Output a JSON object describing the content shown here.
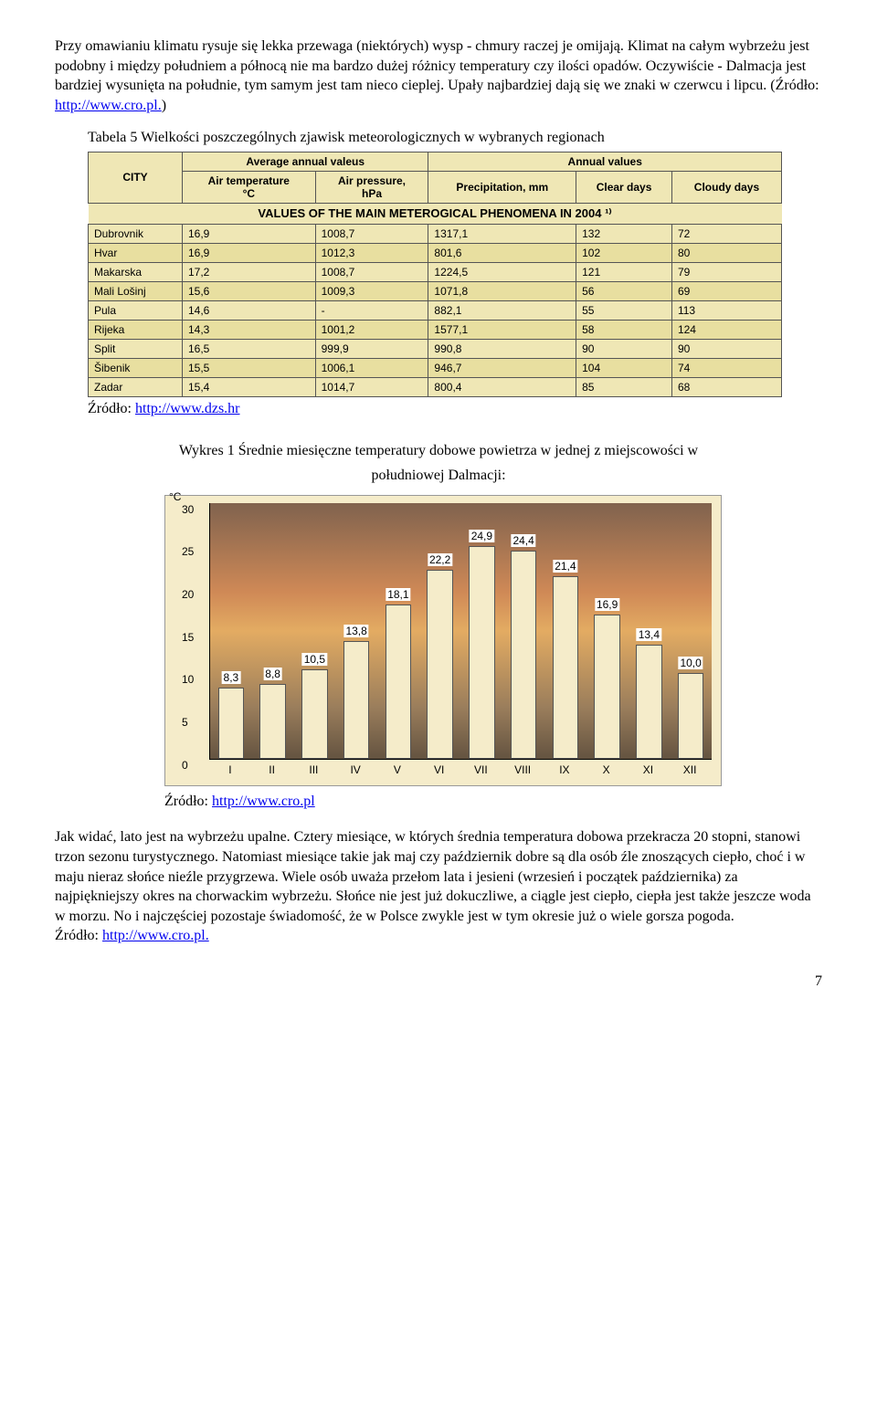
{
  "para1": "Przy omawianiu klimatu rysuje się lekka przewaga (niektórych) wysp - chmury raczej je omijają. Klimat na całym wybrzeżu jest podobny i między południem a północą nie ma bardzo dużej różnicy temperatury czy ilości opadów. Oczywiście - Dalmacja jest bardziej wysunięta na południe, tym samym jest tam nieco cieplej. Upały najbardziej dają się we znaki w czerwcu i lipcu. (Źródło: ",
  "para1_link_text": "http://www.cro.pl.",
  "para1_tail": ")",
  "table_caption": "Tabela 5 Wielkości poszczególnych zjawisk meteorologicznych w wybranych regionach",
  "table_title": "VALUES OF THE MAIN METEROGICAL PHENOMENA IN 2004 ¹⁾",
  "table": {
    "col_group1": "Average annual valeus",
    "col_group2": "Annual values",
    "col_city": "CITY",
    "col_temp": "Air temperature\n°C",
    "col_pressure": "Air pressure,\nhPa",
    "col_precip": "Precipitation, mm",
    "col_clear": "Clear days",
    "col_cloudy": "Cloudy days",
    "rows": [
      {
        "city": "Dubrovnik",
        "temp": "16,9",
        "pressure": "1008,7",
        "precip": "1317,1",
        "clear": "132",
        "cloudy": "72"
      },
      {
        "city": "Hvar",
        "temp": "16,9",
        "pressure": "1012,3",
        "precip": "801,6",
        "clear": "102",
        "cloudy": "80"
      },
      {
        "city": "Makarska",
        "temp": "17,2",
        "pressure": "1008,7",
        "precip": "1224,5",
        "clear": "121",
        "cloudy": "79"
      },
      {
        "city": "Mali Lošinj",
        "temp": "15,6",
        "pressure": "1009,3",
        "precip": "1071,8",
        "clear": "56",
        "cloudy": "69"
      },
      {
        "city": "Pula",
        "temp": "14,6",
        "pressure": "-",
        "precip": "882,1",
        "clear": "55",
        "cloudy": "113"
      },
      {
        "city": "Rijeka",
        "temp": "14,3",
        "pressure": "1001,2",
        "precip": "1577,1",
        "clear": "58",
        "cloudy": "124"
      },
      {
        "city": "Split",
        "temp": "16,5",
        "pressure": "999,9",
        "precip": "990,8",
        "clear": "90",
        "cloudy": "90"
      },
      {
        "city": "Šibenik",
        "temp": "15,5",
        "pressure": "1006,1",
        "precip": "946,7",
        "clear": "104",
        "cloudy": "74"
      },
      {
        "city": "Zadar",
        "temp": "15,4",
        "pressure": "1014,7",
        "precip": "800,4",
        "clear": "85",
        "cloudy": "68"
      }
    ]
  },
  "source1_label": "Źródło: ",
  "source1_link": "http://www.dzs.hr",
  "chart_caption_l1": "Wykres 1 Średnie miesięczne temperatury dobowe powietrza w jednej z miejscowości w",
  "chart_caption_l2": "południowej Dalmacji:",
  "chart": {
    "y_unit": "°C",
    "y_max": 30,
    "y_ticks": [
      0,
      5,
      10,
      15,
      20,
      25,
      30
    ],
    "bar_fill": "#f5ecca",
    "bar_border": "#555555",
    "plot_bg_gradient": [
      "#6b4a38",
      "#c97842",
      "#e0a050",
      "#8a6a48",
      "#4a3828"
    ],
    "x_labels": [
      "I",
      "II",
      "III",
      "IV",
      "V",
      "VI",
      "VII",
      "VIII",
      "IX",
      "X",
      "XI",
      "XII"
    ],
    "values": [
      8.3,
      8.8,
      10.5,
      13.8,
      18.1,
      22.2,
      24.9,
      24.4,
      21.4,
      16.9,
      13.4,
      10.0
    ],
    "value_labels": [
      "8,3",
      "8,8",
      "10,5",
      "13,8",
      "18,1",
      "22,2",
      "24,9",
      "24,4",
      "21,4",
      "16,9",
      "13,4",
      "10,0"
    ]
  },
  "source2_label": "Źródło: ",
  "source2_link": "http://www.cro.pl",
  "para2": "Jak widać, lato jest na wybrzeżu upalne. Cztery miesiące, w których średnia temperatura dobowa przekracza 20 stopni, stanowi trzon sezonu turystycznego. Natomiast miesiące takie jak maj czy październik dobre są dla osób źle znoszących ciepło, choć i w maju nieraz słońce nieźle przygrzewa. Wiele osób uważa przełom lata i jesieni (wrzesień i początek października) za najpiękniejszy okres na chorwackim wybrzeżu. Słońce nie jest już dokuczliwe, a ciągle jest ciepło, ciepła jest także jeszcze woda w morzu. No i najczęściej pozostaje świadomość, że w Polsce zwykle jest w tym okresie już o wiele gorsza pogoda.",
  "para2_src_label": "Źródło: ",
  "para2_src_link": "http://www.cro.pl.",
  "page_number": "7"
}
